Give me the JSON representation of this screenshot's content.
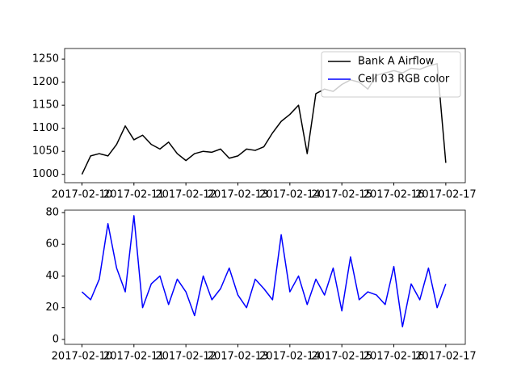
{
  "chart_data": [
    {
      "type": "line",
      "legend": "upper right",
      "x": [
        "2017-02-10 00:00",
        "2017-02-10 04:00",
        "2017-02-10 08:00",
        "2017-02-10 12:00",
        "2017-02-10 16:00",
        "2017-02-10 20:00",
        "2017-02-11 00:00",
        "2017-02-11 04:00",
        "2017-02-11 08:00",
        "2017-02-11 12:00",
        "2017-02-11 16:00",
        "2017-02-11 20:00",
        "2017-02-12 00:00",
        "2017-02-12 04:00",
        "2017-02-12 08:00",
        "2017-02-12 12:00",
        "2017-02-12 16:00",
        "2017-02-12 20:00",
        "2017-02-13 00:00",
        "2017-02-13 04:00",
        "2017-02-13 08:00",
        "2017-02-13 12:00",
        "2017-02-13 16:00",
        "2017-02-13 20:00",
        "2017-02-14 00:00",
        "2017-02-14 04:00",
        "2017-02-14 08:00",
        "2017-02-14 12:00",
        "2017-02-14 16:00",
        "2017-02-14 20:00",
        "2017-02-15 00:00",
        "2017-02-15 04:00",
        "2017-02-15 08:00",
        "2017-02-15 12:00",
        "2017-02-15 16:00",
        "2017-02-15 20:00",
        "2017-02-16 00:00",
        "2017-02-16 04:00",
        "2017-02-16 08:00",
        "2017-02-16 12:00",
        "2017-02-16 16:00",
        "2017-02-16 20:00",
        "2017-02-17 00:00"
      ],
      "series": [
        {
          "name": "Bank A Airflow",
          "color": "#000000",
          "values": [
            1000,
            1040,
            1045,
            1040,
            1065,
            1105,
            1075,
            1085,
            1065,
            1055,
            1070,
            1045,
            1030,
            1045,
            1050,
            1048,
            1055,
            1035,
            1040,
            1055,
            1052,
            1060,
            1090,
            1115,
            1130,
            1150,
            1045,
            1175,
            1185,
            1180,
            1195,
            1205,
            1200,
            1185,
            1215,
            1220,
            1225,
            1220,
            1230,
            1228,
            1235,
            1240,
            1025
          ]
        }
      ],
      "xlim": [
        "2017-02-09 16:00",
        "2017-02-17 09:00"
      ],
      "xticks": [
        "2017-02-10",
        "2017-02-11",
        "2017-02-12",
        "2017-02-13",
        "2017-02-14",
        "2017-02-15",
        "2017-02-16",
        "2017-02-17"
      ],
      "ylim": [
        982,
        1273
      ],
      "yticks": [
        1000,
        1050,
        1100,
        1150,
        1200,
        1250
      ]
    },
    {
      "type": "line",
      "x": [
        "2017-02-10 00:00",
        "2017-02-10 04:00",
        "2017-02-10 08:00",
        "2017-02-10 12:00",
        "2017-02-10 16:00",
        "2017-02-10 20:00",
        "2017-02-11 00:00",
        "2017-02-11 04:00",
        "2017-02-11 08:00",
        "2017-02-11 12:00",
        "2017-02-11 16:00",
        "2017-02-11 20:00",
        "2017-02-12 00:00",
        "2017-02-12 04:00",
        "2017-02-12 08:00",
        "2017-02-12 12:00",
        "2017-02-12 16:00",
        "2017-02-12 20:00",
        "2017-02-13 00:00",
        "2017-02-13 04:00",
        "2017-02-13 08:00",
        "2017-02-13 12:00",
        "2017-02-13 16:00",
        "2017-02-13 20:00",
        "2017-02-14 00:00",
        "2017-02-14 04:00",
        "2017-02-14 08:00",
        "2017-02-14 12:00",
        "2017-02-14 16:00",
        "2017-02-14 20:00",
        "2017-02-15 00:00",
        "2017-02-15 04:00",
        "2017-02-15 08:00",
        "2017-02-15 12:00",
        "2017-02-15 16:00",
        "2017-02-15 20:00",
        "2017-02-16 00:00",
        "2017-02-16 04:00",
        "2017-02-16 08:00",
        "2017-02-16 12:00",
        "2017-02-16 16:00",
        "2017-02-16 20:00",
        "2017-02-17 00:00"
      ],
      "series": [
        {
          "name": "Cell 03 RGB color",
          "color": "#0000ff",
          "values": [
            30,
            25,
            38,
            73,
            45,
            30,
            78,
            20,
            35,
            40,
            22,
            38,
            30,
            15,
            40,
            25,
            32,
            45,
            28,
            20,
            38,
            32,
            25,
            66,
            30,
            40,
            22,
            38,
            28,
            45,
            18,
            52,
            25,
            30,
            28,
            22,
            46,
            8,
            35,
            25,
            45,
            20,
            35
          ]
        }
      ],
      "xlim": [
        "2017-02-09 16:00",
        "2017-02-17 09:00"
      ],
      "xticks": [
        "2017-02-10",
        "2017-02-11",
        "2017-02-12",
        "2017-02-13",
        "2017-02-14",
        "2017-02-15",
        "2017-02-16",
        "2017-02-17"
      ],
      "ylim": [
        -3.1,
        81.5
      ],
      "yticks": [
        0,
        20,
        40,
        60,
        80
      ]
    }
  ]
}
